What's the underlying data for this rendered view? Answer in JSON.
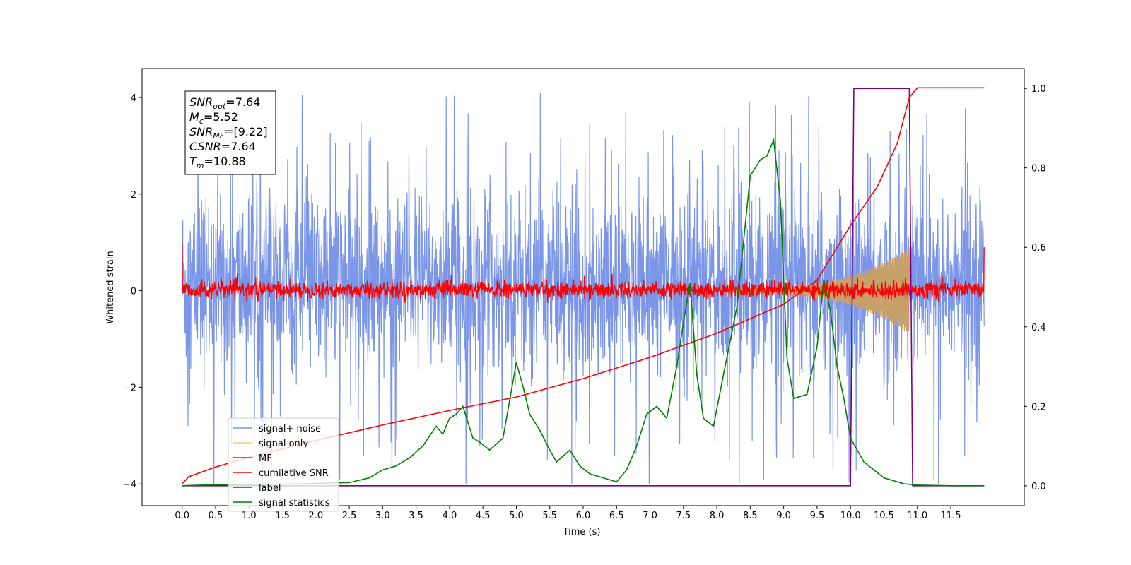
{
  "chart_data": {
    "type": "line",
    "xlabel": "Time (s)",
    "ylabel_left": "Whitened strain",
    "ylabel_right": "",
    "xlim": [
      -0.6,
      12.6
    ],
    "ylim_left": [
      -4.45,
      4.6
    ],
    "ylim_right": [
      -0.05,
      1.05
    ],
    "x_ticks": [
      "0.0",
      "0.5",
      "1.0",
      "1.5",
      "2.0",
      "2.5",
      "3.0",
      "3.5",
      "4.0",
      "4.5",
      "5.0",
      "5.5",
      "6.0",
      "6.5",
      "7.0",
      "7.5",
      "8.0",
      "8.5",
      "9.0",
      "9.5",
      "10.0",
      "10.5",
      "11.0",
      "11.5"
    ],
    "x_tick_values": [
      0,
      0.5,
      1,
      1.5,
      2,
      2.5,
      3,
      3.5,
      4,
      4.5,
      5,
      5.5,
      6,
      6.5,
      7,
      7.5,
      8,
      8.5,
      9,
      9.5,
      10,
      10.5,
      11,
      11.5
    ],
    "y_left_ticks": [
      "4",
      "2",
      "0",
      "−2",
      "−4"
    ],
    "y_left_tick_values": [
      4,
      2,
      0,
      -2,
      -4
    ],
    "y_right_ticks": [
      "1.0",
      "0.8",
      "0.6",
      "0.4",
      "0.2",
      "0.0"
    ],
    "y_right_tick_values": [
      1.0,
      0.8,
      0.6,
      0.4,
      0.2,
      0.0
    ],
    "annotation_lines": [
      {
        "sym": "SNR",
        "sub": "opt",
        "val": "=7.64"
      },
      {
        "sym": "M",
        "sub": "c",
        "val": "=5.52"
      },
      {
        "sym": "SNR",
        "sub": "MF",
        "val": "=[9.22]"
      },
      {
        "sym": "CSNR",
        "sub": "",
        "val": "=7.64"
      },
      {
        "sym": "T",
        "sub": "m",
        "val": "=10.88"
      }
    ],
    "legend": [
      {
        "name": "signal+ noise",
        "color": "#7b96e8"
      },
      {
        "name": "signal only",
        "color": "#f5c87a"
      },
      {
        "name": "MF",
        "color": "#ff0000"
      },
      {
        "name": "cumilative SNR",
        "color": "#ff0000"
      },
      {
        "name": "label",
        "color": "#800080"
      },
      {
        "name": "signal statistics",
        "color": "#008000"
      }
    ],
    "series": [
      {
        "name": "label",
        "axis": "right",
        "x": [
          0,
          10.0,
          10.05,
          10.88,
          10.93,
          12.0
        ],
        "y": [
          0,
          0,
          1,
          1,
          0,
          0
        ]
      },
      {
        "name": "cumilative SNR",
        "axis": "left",
        "x": [
          0,
          0.1,
          0.5,
          1,
          2,
          3,
          4,
          5,
          6,
          7,
          8,
          9,
          9.5,
          10,
          10.4,
          10.7,
          10.88,
          11,
          12
        ],
        "y": [
          -4,
          -3.85,
          -3.65,
          -3.45,
          -3.1,
          -2.78,
          -2.48,
          -2.2,
          -1.82,
          -1.38,
          -0.88,
          -0.28,
          0.22,
          1.35,
          2.15,
          3.05,
          4.0,
          4.2,
          4.2
        ]
      },
      {
        "name": "signal statistics",
        "axis": "right",
        "x": [
          0,
          0.5,
          1,
          1.5,
          2,
          2.5,
          2.8,
          3.0,
          3.2,
          3.4,
          3.6,
          3.8,
          3.9,
          4.0,
          4.1,
          4.2,
          4.35,
          4.45,
          4.6,
          4.8,
          5.0,
          5.1,
          5.2,
          5.35,
          5.5,
          5.6,
          5.8,
          5.95,
          6.1,
          6.3,
          6.5,
          6.65,
          6.8,
          6.95,
          7.1,
          7.25,
          7.4,
          7.5,
          7.6,
          7.7,
          7.8,
          7.95,
          8.1,
          8.3,
          8.5,
          8.65,
          8.75,
          8.85,
          8.95,
          9.05,
          9.15,
          9.35,
          9.5,
          9.6,
          9.7,
          9.8,
          9.9,
          10.0,
          10.2,
          10.5,
          10.8,
          11.0,
          11.5,
          12.0
        ],
        "y": [
          0.0,
          0.003,
          0.002,
          0.004,
          0.006,
          0.008,
          0.02,
          0.04,
          0.05,
          0.07,
          0.1,
          0.15,
          0.13,
          0.17,
          0.18,
          0.2,
          0.12,
          0.11,
          0.09,
          0.12,
          0.31,
          0.25,
          0.18,
          0.14,
          0.09,
          0.06,
          0.09,
          0.05,
          0.03,
          0.02,
          0.01,
          0.04,
          0.1,
          0.18,
          0.2,
          0.17,
          0.3,
          0.41,
          0.51,
          0.28,
          0.17,
          0.15,
          0.28,
          0.45,
          0.78,
          0.82,
          0.83,
          0.87,
          0.72,
          0.32,
          0.22,
          0.23,
          0.35,
          0.52,
          0.44,
          0.3,
          0.22,
          0.12,
          0.06,
          0.02,
          0.005,
          0.002,
          0.0,
          0.0
        ]
      }
    ],
    "noise_band": {
      "series_name": "signal+ noise",
      "x_range": [
        0,
        12.0
      ],
      "typical_range": [
        -2.2,
        2.5
      ],
      "extremes": [
        -4.0,
        4.2
      ]
    },
    "mf_band": {
      "series_name": "MF",
      "x_range": [
        0,
        12.0
      ],
      "typical_range": [
        -0.25,
        0.3
      ]
    },
    "signal_only": {
      "series_name": "signal only",
      "x_range": [
        8.2,
        10.88
      ],
      "amplitude_start": 0.05,
      "amplitude_end": 0.9
    }
  }
}
